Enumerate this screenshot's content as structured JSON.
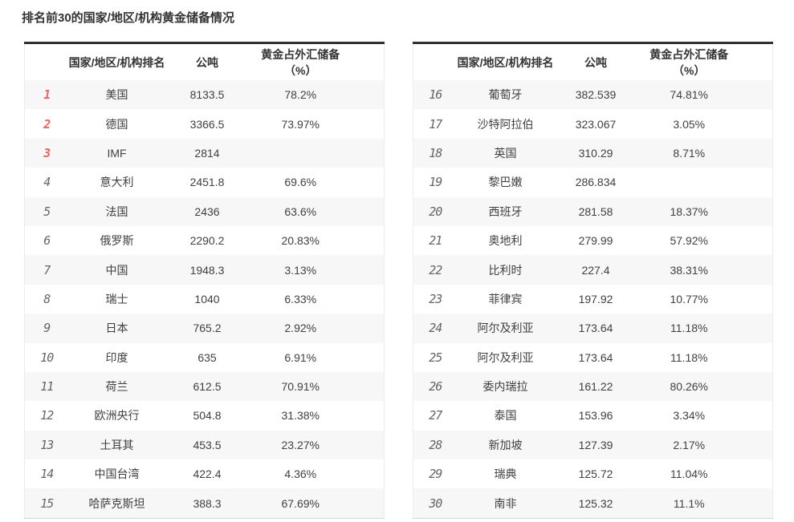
{
  "page_title": "排名前30的国家/地区/机构黄金储备情况",
  "headers": {
    "rank": "",
    "name": "国家/地区/机构排名",
    "tonnes": "公吨",
    "percent": "黄金占外汇储备（%）"
  },
  "colors": {
    "top3_rank": "#f2605f",
    "rank": "#666666",
    "header_top_border": "#303030",
    "alt_row_bg": "#f7f7f7",
    "body_text": "#404040"
  },
  "left_table": {
    "rows": [
      {
        "rank": "1",
        "name": "美国",
        "tonnes": "8133.5",
        "percent": "78.2%"
      },
      {
        "rank": "2",
        "name": "德国",
        "tonnes": "3366.5",
        "percent": "73.97%"
      },
      {
        "rank": "3",
        "name": "IMF",
        "tonnes": "2814",
        "percent": ""
      },
      {
        "rank": "4",
        "name": "意大利",
        "tonnes": "2451.8",
        "percent": "69.6%"
      },
      {
        "rank": "5",
        "name": "法国",
        "tonnes": "2436",
        "percent": "63.6%"
      },
      {
        "rank": "6",
        "name": "俄罗斯",
        "tonnes": "2290.2",
        "percent": "20.83%"
      },
      {
        "rank": "7",
        "name": "中国",
        "tonnes": "1948.3",
        "percent": "3.13%"
      },
      {
        "rank": "8",
        "name": "瑞士",
        "tonnes": "1040",
        "percent": "6.33%"
      },
      {
        "rank": "9",
        "name": "日本",
        "tonnes": "765.2",
        "percent": "2.92%"
      },
      {
        "rank": "10",
        "name": "印度",
        "tonnes": "635",
        "percent": "6.91%"
      },
      {
        "rank": "11",
        "name": "荷兰",
        "tonnes": "612.5",
        "percent": "70.91%"
      },
      {
        "rank": "12",
        "name": "欧洲央行",
        "tonnes": "504.8",
        "percent": "31.38%"
      },
      {
        "rank": "13",
        "name": "土耳其",
        "tonnes": "453.5",
        "percent": "23.27%"
      },
      {
        "rank": "14",
        "name": "中国台湾",
        "tonnes": "422.4",
        "percent": "4.36%"
      },
      {
        "rank": "15",
        "name": "哈萨克斯坦",
        "tonnes": "388.3",
        "percent": "67.69%"
      }
    ]
  },
  "right_table": {
    "rows": [
      {
        "rank": "16",
        "name": "葡萄牙",
        "tonnes": "382.539",
        "percent": "74.81%"
      },
      {
        "rank": "17",
        "name": "沙特阿拉伯",
        "tonnes": "323.067",
        "percent": "3.05%"
      },
      {
        "rank": "18",
        "name": "英国",
        "tonnes": "310.29",
        "percent": "8.71%"
      },
      {
        "rank": "19",
        "name": "黎巴嫩",
        "tonnes": "286.834",
        "percent": ""
      },
      {
        "rank": "20",
        "name": "西班牙",
        "tonnes": "281.58",
        "percent": "18.37%"
      },
      {
        "rank": "21",
        "name": "奥地利",
        "tonnes": "279.99",
        "percent": "57.92%"
      },
      {
        "rank": "22",
        "name": "比利时",
        "tonnes": "227.4",
        "percent": "38.31%"
      },
      {
        "rank": "23",
        "name": "菲律宾",
        "tonnes": "197.92",
        "percent": "10.77%"
      },
      {
        "rank": "24",
        "name": "阿尔及利亚",
        "tonnes": "173.64",
        "percent": "11.18%"
      },
      {
        "rank": "25",
        "name": "阿尔及利亚",
        "tonnes": "173.64",
        "percent": "11.18%"
      },
      {
        "rank": "26",
        "name": "委内瑞拉",
        "tonnes": "161.22",
        "percent": "80.26%"
      },
      {
        "rank": "27",
        "name": "泰国",
        "tonnes": "153.96",
        "percent": "3.34%"
      },
      {
        "rank": "28",
        "name": "新加坡",
        "tonnes": "127.39",
        "percent": "2.17%"
      },
      {
        "rank": "29",
        "name": "瑞典",
        "tonnes": "125.72",
        "percent": "11.04%"
      },
      {
        "rank": "30",
        "name": "南非",
        "tonnes": "125.32",
        "percent": "11.1%"
      }
    ]
  }
}
